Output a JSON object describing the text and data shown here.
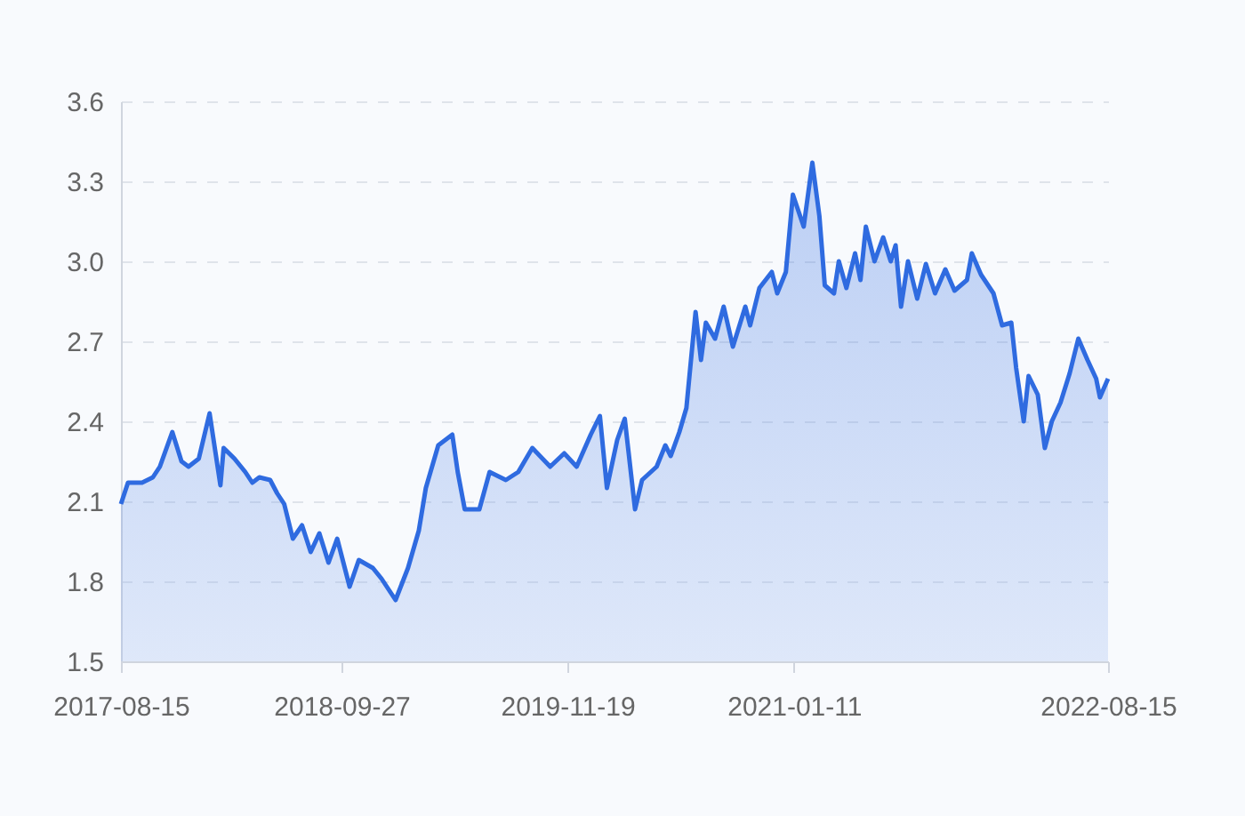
{
  "chart_data": {
    "type": "area",
    "xlim": [
      "2017-08-15",
      "2022-08-15"
    ],
    "xticks": [
      "2017-08-15",
      "2018-09-27",
      "2019-11-19",
      "2021-01-11",
      "2022-08-15"
    ],
    "ylim": [
      1.5,
      3.6
    ],
    "yticks": [
      1.5,
      1.8,
      2.1,
      2.4,
      2.7,
      {
        "value": 3.0,
        "label": "3.0"
      },
      3.3,
      3.6
    ],
    "grid": "y",
    "x": [
      "2017-08-15",
      "2017-08-28",
      "2017-09-23",
      "2017-10-13",
      "2017-10-26",
      "2017-11-18",
      "2017-12-05",
      "2017-12-18",
      "2018-01-06",
      "2018-01-26",
      "2018-02-15",
      "2018-02-21",
      "2018-03-13",
      "2018-04-02",
      "2018-04-15",
      "2018-04-28",
      "2018-05-18",
      "2018-05-31",
      "2018-06-13",
      "2018-06-29",
      "2018-07-16",
      "2018-08-01",
      "2018-08-17",
      "2018-09-03",
      "2018-09-19",
      "2018-10-12",
      "2018-10-29",
      "2018-11-24",
      "2018-12-10",
      "2019-01-05",
      "2019-01-28",
      "2019-02-17",
      "2019-03-02",
      "2019-03-25",
      "2019-04-20",
      "2019-04-30",
      "2019-05-13",
      "2019-06-09",
      "2019-06-28",
      "2019-07-28",
      "2019-08-20",
      "2019-09-15",
      "2019-10-18",
      "2019-11-13",
      "2019-12-06",
      "2020-01-01",
      "2020-01-18",
      "2020-01-31",
      "2020-02-19",
      "2020-03-04",
      "2020-03-23",
      "2020-04-05",
      "2020-05-02",
      "2020-05-18",
      "2020-05-28",
      "2020-06-13",
      "2020-06-26",
      "2020-07-13",
      "2020-07-23",
      "2020-08-01",
      "2020-08-18",
      "2020-09-03",
      "2020-09-20",
      "2020-10-13",
      "2020-10-22",
      "2020-11-08",
      "2020-12-01",
      "2020-12-11",
      "2020-12-27",
      "2021-01-09",
      "2021-01-29",
      "2021-02-14",
      "2021-02-27",
      "2021-03-09",
      "2021-03-26",
      "2021-04-04",
      "2021-04-18",
      "2021-05-04",
      "2021-05-14",
      "2021-05-24",
      "2021-06-09",
      "2021-06-25",
      "2021-07-09",
      "2021-07-18",
      "2021-07-28",
      "2021-08-10",
      "2021-08-27",
      "2021-09-12",
      "2021-09-29",
      "2021-10-18",
      "2021-11-04",
      "2021-11-27",
      "2021-12-06",
      "2021-12-23",
      "2022-01-15",
      "2022-01-31",
      "2022-02-17",
      "2022-02-26",
      "2022-03-12",
      "2022-03-21",
      "2022-04-07",
      "2022-04-20",
      "2022-05-03",
      "2022-05-19",
      "2022-06-05",
      "2022-06-21",
      "2022-07-08",
      "2022-07-24",
      "2022-07-31",
      "2022-08-15"
    ],
    "series": [
      {
        "color": "#2f6be0",
        "values": [
          2.09,
          2.17,
          2.17,
          2.19,
          2.23,
          2.36,
          2.25,
          2.23,
          2.26,
          2.43,
          2.16,
          2.3,
          2.26,
          2.21,
          2.17,
          2.19,
          2.18,
          2.13,
          2.09,
          1.96,
          2.01,
          1.91,
          1.98,
          1.87,
          1.96,
          1.78,
          1.88,
          1.85,
          1.81,
          1.73,
          1.85,
          1.99,
          2.15,
          2.31,
          2.35,
          2.21,
          2.07,
          2.07,
          2.21,
          2.18,
          2.21,
          2.3,
          2.23,
          2.28,
          2.23,
          2.35,
          2.42,
          2.15,
          2.33,
          2.41,
          2.07,
          2.18,
          2.23,
          2.31,
          2.27,
          2.36,
          2.45,
          2.81,
          2.63,
          2.77,
          2.71,
          2.83,
          2.68,
          2.83,
          2.76,
          2.9,
          2.96,
          2.88,
          2.96,
          3.25,
          3.13,
          3.37,
          3.17,
          2.91,
          2.88,
          3.0,
          2.9,
          3.03,
          2.93,
          3.13,
          3.0,
          3.09,
          3.0,
          3.06,
          2.83,
          3.0,
          2.86,
          2.99,
          2.88,
          2.97,
          2.89,
          2.93,
          3.03,
          2.95,
          2.88,
          2.76,
          2.77,
          2.6,
          2.4,
          2.57,
          2.5,
          2.3,
          2.4,
          2.47,
          2.58,
          2.71,
          2.63,
          2.56,
          2.49,
          2.56
        ]
      }
    ]
  }
}
